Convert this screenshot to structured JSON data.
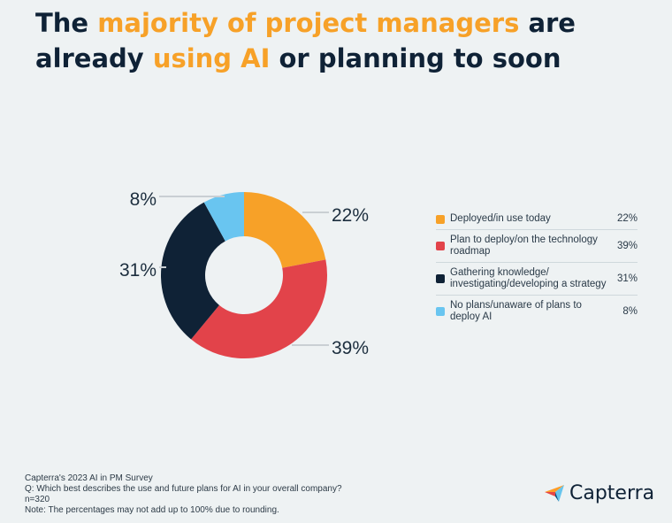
{
  "title": {
    "part1": "The ",
    "highlight1": "majority of project managers",
    "part2": " are already ",
    "highlight2": "using AI",
    "part3": " or planning to soon"
  },
  "chart_data": {
    "type": "pie",
    "donut": true,
    "categories": [
      "Deployed/in use today",
      "Plan to deploy/on the technology roadmap",
      "Gathering knowledge/ investigating/developing a strategy",
      "No plans/unaware of plans to deploy AI"
    ],
    "values": [
      22,
      39,
      31,
      8
    ],
    "value_labels": [
      "22%",
      "39%",
      "31%",
      "8%"
    ],
    "colors": [
      "#f7a128",
      "#e2434a",
      "#0f2236",
      "#69c5f0"
    ],
    "legend_placement": "right"
  },
  "legend": [
    {
      "label": "Deployed/in use today",
      "pct": "22%",
      "color": "#f7a128"
    },
    {
      "label": "Plan to deploy/on the technology roadmap",
      "pct": "39%",
      "color": "#e2434a"
    },
    {
      "label": "Gathering knowledge/ investigating/developing a strategy",
      "pct": "31%",
      "color": "#0f2236"
    },
    {
      "label": "No plans/unaware of plans to deploy AI",
      "pct": "8%",
      "color": "#69c5f0"
    }
  ],
  "footer": {
    "source": "Capterra's 2023 AI in PM Survey",
    "question": "Q: Which best describes the use and future plans for AI in your overall company?",
    "n": "n=320",
    "note": "Note: The percentages may not add up to 100% due to rounding."
  },
  "logo": {
    "text": "Capterra"
  },
  "colors": {
    "accent": "#f7a128",
    "navy": "#0f2236",
    "background": "#eef2f3"
  }
}
